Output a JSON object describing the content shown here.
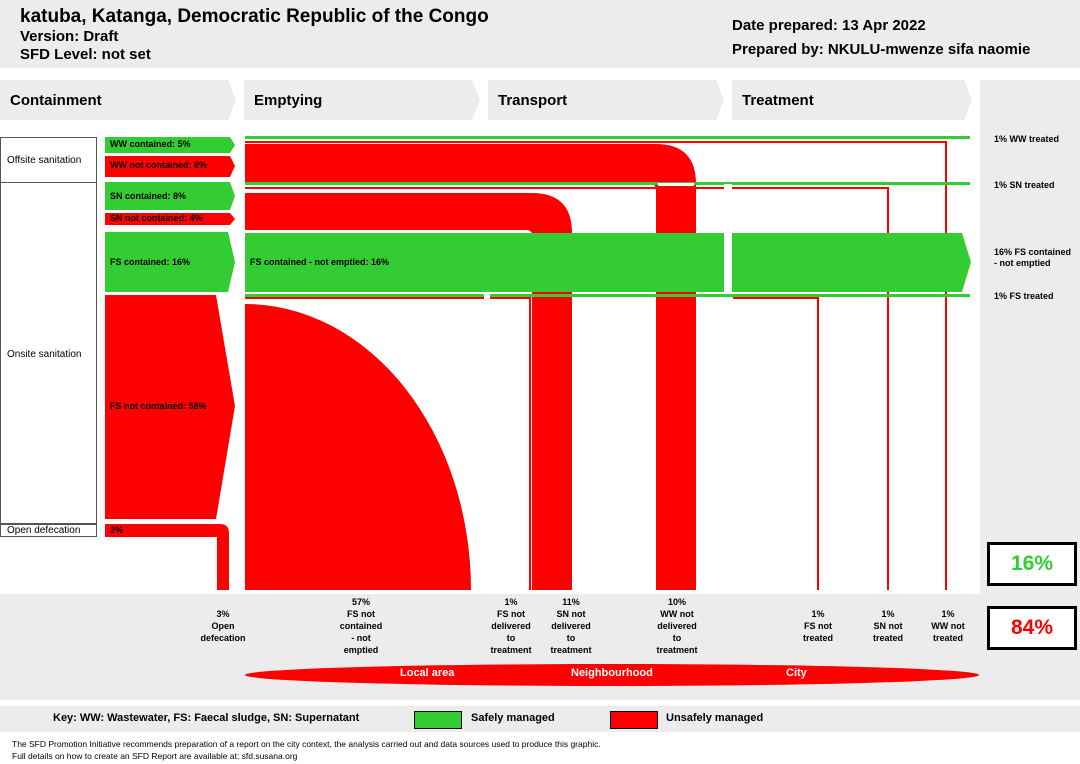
{
  "header": {
    "title": "katuba, Katanga, Democratic Republic of the Congo",
    "version": "Version: Draft",
    "sfd_level": "SFD Level: not set",
    "date_prepared": "Date prepared: 13 Apr 2022",
    "prepared_by": "Prepared by: NKULU-mwenze sifa naomie"
  },
  "stages": [
    "Containment",
    "Emptying",
    "Transport",
    "Treatment"
  ],
  "sidebar": {
    "offsite": "Offsite sanitation",
    "onsite": "Onsite sanitation",
    "open_defecation": "Open defecation"
  },
  "containment": {
    "ww_contained": "WW contained: 5%",
    "ww_not_contained": "WW not contained: 8%",
    "sn_contained": "SN contained: 8%",
    "sn_not_contained": "SN not contained: 4%",
    "fs_contained": "FS contained: 16%",
    "fs_not_contained": "FS not contained: 58%",
    "od": "3%"
  },
  "flows": {
    "fs_not_emptied": "FS contained - not emptied: 16%"
  },
  "outcomes_right": {
    "ww_treated": "1% WW treated",
    "sn_treated": "1% SN treated",
    "fs_not_emptied": "16% FS contained - not emptied",
    "fs_treated": "1% FS treated"
  },
  "outcomes_bottom": [
    "3%\nOpen\ndefecation",
    "57%\nFS not\ncontained\n- not\nemptied",
    "1%\nFS not\ndelivered\nto\ntreatment",
    "11%\nSN not\ndelivered\nto\ntreatment",
    "10%\nWW not\ndelivered\nto\ntreatment",
    "1%\nFS not\ntreated",
    "1%\nSN not\ntreated",
    "1%\nWW not\ntreated"
  ],
  "totals": {
    "safe": "16%",
    "unsafe": "84%",
    "safe_color": "#33cc33",
    "unsafe_color": "#ff0000"
  },
  "zones": [
    "Local area",
    "Neighbourhood",
    "City"
  ],
  "key": {
    "text": "Key: WW: Wastewater, FS: Faecal sludge, SN: Supernatant",
    "safe": "Safely managed",
    "unsafe": "Unsafely managed"
  },
  "footer": {
    "line1": "The SFD Promotion Initiative recommends preparation of a report on the city context, the analysis carried out and data sources used to produce this graphic.",
    "line2": "Full details on how to create an SFD Report are available at: sfd.susana.org"
  }
}
